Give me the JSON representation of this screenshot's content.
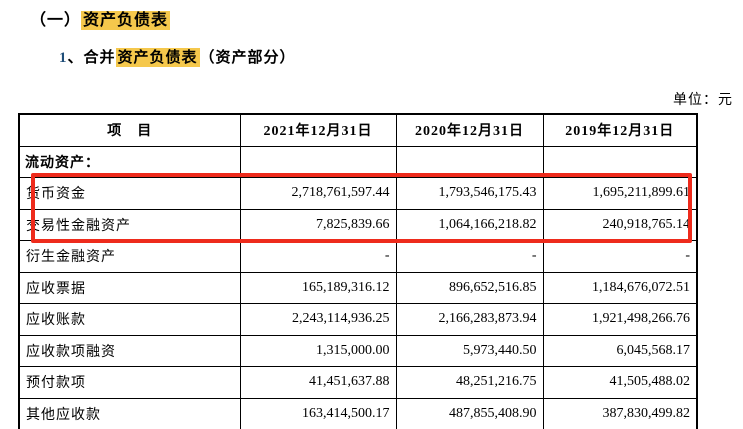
{
  "page": {
    "heading1": {
      "prefix": "（一）",
      "highlight": "资产负债表"
    },
    "heading2": {
      "number": "1",
      "separator": "、",
      "pre_text": "合并",
      "highlight": "资产负债表",
      "suffix": "（资产部分）"
    },
    "unit_label": "单位：元"
  },
  "colors": {
    "highlight_yellow": "#F5C84C",
    "annotation_red": "#EE2B1C",
    "heading_number_blue": "#1F4E79",
    "table_border": "#000000"
  },
  "table": {
    "headers": [
      "项　目",
      "2021年12月31日",
      "2020年12月31日",
      "2019年12月31日"
    ],
    "rows": [
      {
        "label": "流动资产：",
        "values": [
          "",
          "",
          ""
        ]
      },
      {
        "label": "货币资金",
        "values": [
          "2,718,761,597.44",
          "1,793,546,175.43",
          "1,695,211,899.61"
        ]
      },
      {
        "label": "交易性金融资产",
        "values": [
          "7,825,839.66",
          "1,064,166,218.82",
          "240,918,765.14"
        ]
      },
      {
        "label": "衍生金融资产",
        "values": [
          "-",
          "-",
          "-"
        ]
      },
      {
        "label": "应收票据",
        "values": [
          "165,189,316.12",
          "896,652,516.85",
          "1,184,676,072.51"
        ]
      },
      {
        "label": "应收账款",
        "values": [
          "2,243,114,936.25",
          "2,166,283,873.94",
          "1,921,498,266.76"
        ]
      },
      {
        "label": "应收款项融资",
        "values": [
          "1,315,000.00",
          "5,973,440.50",
          "6,045,568.17"
        ]
      },
      {
        "label": "预付款项",
        "values": [
          "41,451,637.88",
          "48,251,216.75",
          "41,505,488.02"
        ]
      },
      {
        "label": "其他应收款",
        "values": [
          "163,414,500.17",
          "487,855,408.90",
          "387,830,499.82"
        ]
      }
    ],
    "annotation": {
      "type": "red-rectangle",
      "rows_enclosed": [
        "货币资金",
        "交易性金融资产"
      ]
    }
  }
}
